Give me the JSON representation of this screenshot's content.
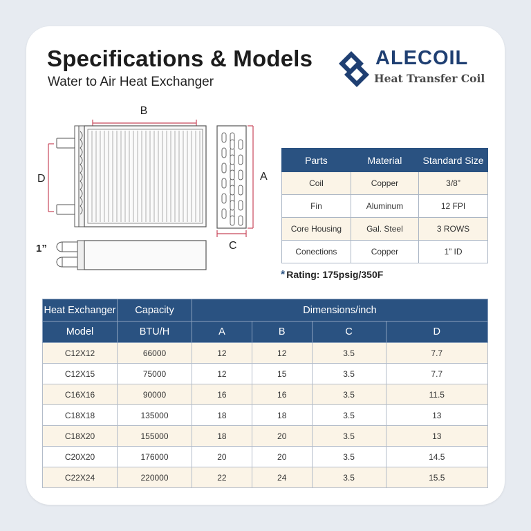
{
  "header": {
    "title": "Specifications & Models",
    "subtitle": "Water to Air Heat Exchanger"
  },
  "logo": {
    "brand": "ALECOIL",
    "tagline": "Heat Transfer Coil"
  },
  "diagram": {
    "label_b": "B",
    "label_d": "D",
    "label_a": "A",
    "label_c": "C",
    "label_inlet": "1”"
  },
  "parts_table": {
    "headers": [
      "Parts",
      "Material",
      "Standard Size"
    ],
    "rows": [
      [
        "Coil",
        "Copper",
        "3/8”"
      ],
      [
        "Fin",
        "Aluminum",
        "12 FPI"
      ],
      [
        "Core Housing",
        "Gal. Steel",
        "3 ROWS"
      ],
      [
        "Conections",
        "Copper",
        "1” ID"
      ]
    ]
  },
  "rating": {
    "mark": "*",
    "text": "Rating: 175psig/350F"
  },
  "models_table": {
    "group_headers": [
      "Heat Exchanger",
      "Capacity",
      "Dimensions/inch"
    ],
    "headers": [
      "Model",
      "BTU/H",
      "A",
      "B",
      "C",
      "D"
    ],
    "rows": [
      [
        "C12X12",
        "66000",
        "12",
        "12",
        "3.5",
        "7.7"
      ],
      [
        "C12X15",
        "75000",
        "12",
        "15",
        "3.5",
        "7.7"
      ],
      [
        "C16X16",
        "90000",
        "16",
        "16",
        "3.5",
        "11.5"
      ],
      [
        "C18X18",
        "135000",
        "18",
        "18",
        "3.5",
        "13"
      ],
      [
        "C18X20",
        "155000",
        "18",
        "20",
        "3.5",
        "13"
      ],
      [
        "C20X20",
        "176000",
        "20",
        "20",
        "3.5",
        "14.5"
      ],
      [
        "C22X24",
        "220000",
        "22",
        "24",
        "3.5",
        "15.5"
      ]
    ]
  },
  "colors": {
    "header_blue": "#2a5281",
    "alt_row": "#fbf4e7",
    "dimension_line": "#c8475a"
  }
}
